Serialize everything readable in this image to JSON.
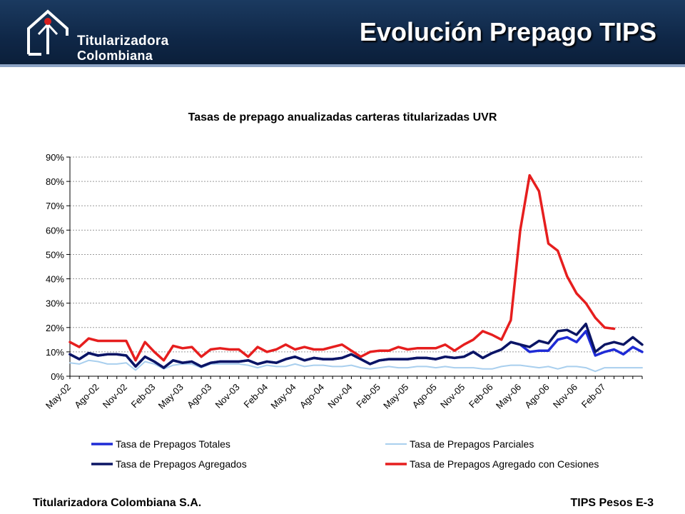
{
  "header": {
    "logo_line1": "Titularizadora",
    "logo_line2": "Colombiana",
    "title": "Evolución Prepago TIPS",
    "background": "#0f2747",
    "logo_dot_color": "#d81e1e"
  },
  "footer": {
    "left": "Titularizadora Colombiana S.A.",
    "right": "TIPS Pesos E-3"
  },
  "chart_data": {
    "type": "line",
    "title": "Tasas de prepago anualizadas carteras titularizadas UVR",
    "xlabel": "",
    "ylabel": "",
    "ylim": [
      0,
      90
    ],
    "y_ticks": [
      "0%",
      "10%",
      "20%",
      "30%",
      "40%",
      "50%",
      "60%",
      "70%",
      "80%",
      "90%"
    ],
    "grid": true,
    "legend_position": "bottom",
    "x_tick_labels": [
      "May-02",
      "Ago-02",
      "Nov-02",
      "Feb-03",
      "May-03",
      "Ago-03",
      "Nov-03",
      "Feb-04",
      "May-04",
      "Ago-04",
      "Nov-04",
      "Feb-05",
      "May-05",
      "Ago-05",
      "Nov-05",
      "Feb-06",
      "May-06",
      "Ago-06",
      "Nov-06",
      "Feb-07"
    ],
    "series": [
      {
        "name": "Tasa de Prepagos Totales",
        "color": "#1f2bd6",
        "values": [
          9,
          7,
          9.5,
          8.5,
          9,
          9,
          8.5,
          4,
          8,
          6,
          3.5,
          6.5,
          5.5,
          6,
          4,
          5.5,
          6,
          6,
          6,
          6.5,
          5,
          6,
          5.5,
          7,
          8,
          6.5,
          7.5,
          7,
          7,
          7.5,
          9,
          7,
          5,
          6.5,
          7,
          7,
          7,
          7.5,
          7.5,
          7,
          8,
          7.5,
          8,
          10,
          7.5,
          9.5,
          11,
          14,
          13,
          10,
          10.5,
          10.5,
          15,
          16,
          14,
          18.5,
          8.5,
          10,
          11,
          9,
          12,
          10
        ]
      },
      {
        "name": "Tasa de Prepagos Parciales",
        "color": "#a9cfee",
        "values": [
          5.5,
          5,
          6.5,
          6,
          5,
          5,
          5.5,
          2.5,
          6,
          5,
          3,
          4.5,
          5,
          5,
          3.5,
          5,
          5,
          5,
          5,
          4.5,
          3.5,
          4.5,
          4,
          4,
          5,
          4,
          4.5,
          4.5,
          4,
          4,
          4.5,
          3.5,
          3,
          3.5,
          4,
          3.5,
          3.5,
          4,
          4,
          3.5,
          4,
          3.5,
          3.5,
          3.5,
          3,
          3,
          4,
          4.5,
          4.5,
          4,
          3.5,
          4,
          3,
          4,
          4,
          3.5,
          2,
          3.5,
          3.5,
          3.5,
          3.5,
          3.5
        ]
      },
      {
        "name": "Tasa de Prepagos Agregados",
        "color": "#0b1564",
        "values": [
          9,
          7,
          9.5,
          8.5,
          9,
          9,
          8.5,
          4,
          8,
          6,
          3.5,
          6.5,
          5.5,
          6,
          4,
          5.5,
          6,
          6,
          6,
          6.5,
          5,
          6,
          5.5,
          7,
          8,
          6.5,
          7.5,
          7,
          7,
          7.5,
          9,
          7,
          5,
          6.5,
          7,
          7,
          7,
          7.5,
          7.5,
          7,
          8,
          7.5,
          8,
          10,
          7.5,
          9.5,
          11,
          14,
          13,
          12,
          14.5,
          13.5,
          18.5,
          19,
          17,
          21.5,
          10,
          13,
          14,
          13,
          16,
          13
        ]
      },
      {
        "name": "Tasa de Prepagos Agregado con Cesiones",
        "color": "#e61e1e",
        "values": [
          14,
          12,
          15.5,
          14.5,
          14.5,
          14.5,
          14.5,
          6.5,
          14,
          10,
          6.5,
          12.5,
          11.5,
          12,
          8,
          11,
          11.5,
          11,
          11,
          8,
          12,
          10,
          11,
          13,
          11,
          12,
          11,
          11,
          12,
          13,
          10.5,
          8,
          10,
          10.5,
          10.5,
          12,
          11,
          11.5,
          11.5,
          11.5,
          13,
          10.5,
          13,
          15,
          18.5,
          17,
          15,
          23,
          60,
          82.5,
          76,
          54.5,
          51.5,
          41,
          34,
          30,
          24,
          20,
          19.5
        ]
      }
    ]
  }
}
